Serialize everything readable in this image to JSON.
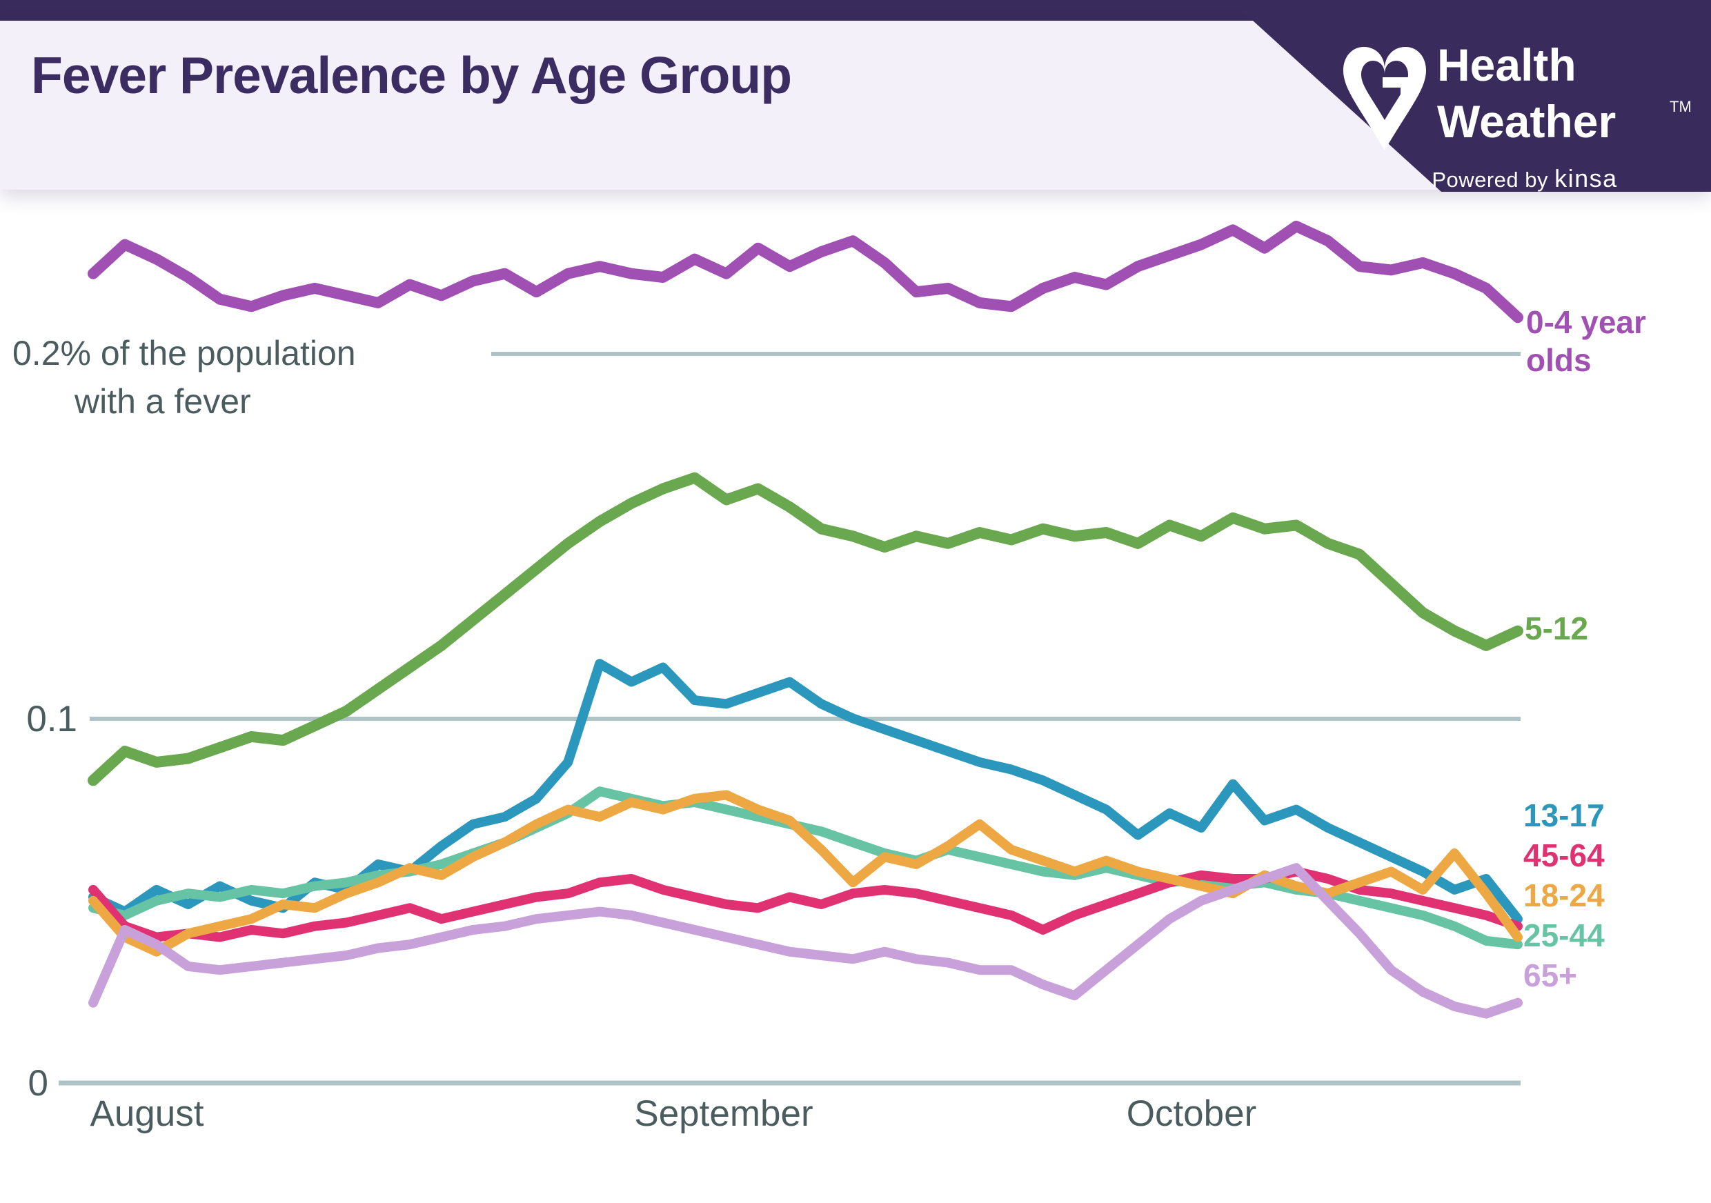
{
  "header": {
    "title": "Fever Prevalence by Age Group",
    "top_bar_color": "#3a2b5d",
    "band_color": "#f3f0fa",
    "title_color": "#3b2c62"
  },
  "brand": {
    "name_line1": "Health",
    "name_line2": "Weather",
    "trademark": "TM",
    "powered_by_prefix": "Powered by ",
    "powered_by_brand": "kinsa",
    "banner_color": "#3a2b5d",
    "logo_icon": "heart-g-logo"
  },
  "axis": {
    "y_annotation_line1": "0.2% of the population",
    "y_annotation_line2": "with a fever",
    "y_tick_mid": "0.1",
    "y_tick_bottom": "0",
    "x_tick_aug": "August",
    "x_tick_sep": "September",
    "x_tick_oct": "October",
    "text_color": "#4b5c5e",
    "gridline_color": "#adc3c6"
  },
  "legend": {
    "purple_line1": "0-4 year",
    "purple_line2": "olds",
    "green": "5-12",
    "blue": "13-17",
    "pink": "45-64",
    "orange": "18-24",
    "teal": "25-44",
    "lavender": "65+"
  },
  "chart_data": {
    "type": "line",
    "title": "Fever Prevalence by Age Group",
    "xlabel": "",
    "ylabel": "% of the population with a fever",
    "x_categories": [
      "August",
      "September",
      "October"
    ],
    "ylim": [
      0,
      0.25
    ],
    "gridline_values": [
      0,
      0.1,
      0.2
    ],
    "legend_position": "right",
    "grid": "horizontal-only",
    "pixel_map": {
      "x_left": 135,
      "x_right": 2200,
      "y_zero": 1570,
      "y_per_unit": 5285
    },
    "gridline_segments": [
      {
        "x1": 712,
        "x2": 2204,
        "y": 513,
        "w": 6
      },
      {
        "x1": 130,
        "x2": 2204,
        "y": 1042,
        "w": 6
      },
      {
        "x1": 85,
        "x2": 2204,
        "y": 1570,
        "w": 7
      }
    ],
    "series": [
      {
        "id": "5-12",
        "name": "5-12",
        "color": "#6aa84f",
        "stroke_width": 16,
        "values": [
          0.083,
          0.091,
          0.088,
          0.089,
          0.092,
          0.095,
          0.094,
          0.098,
          0.102,
          0.108,
          0.114,
          0.12,
          0.127,
          0.134,
          0.141,
          0.148,
          0.154,
          0.159,
          0.163,
          0.166,
          0.16,
          0.163,
          0.158,
          0.152,
          0.15,
          0.147,
          0.15,
          0.148,
          0.151,
          0.149,
          0.152,
          0.15,
          0.151,
          0.148,
          0.153,
          0.15,
          0.155,
          0.152,
          0.153,
          0.148,
          0.145,
          0.137,
          0.129,
          0.124,
          0.12,
          0.124
        ]
      },
      {
        "id": "0-4",
        "name": "0-4 year olds",
        "color": "#a050b2",
        "stroke_width": 16,
        "values": [
          0.222,
          0.23,
          0.226,
          0.221,
          0.215,
          0.213,
          0.216,
          0.218,
          0.216,
          0.214,
          0.219,
          0.216,
          0.22,
          0.222,
          0.217,
          0.222,
          0.224,
          0.222,
          0.221,
          0.226,
          0.222,
          0.229,
          0.224,
          0.228,
          0.231,
          0.225,
          0.217,
          0.218,
          0.214,
          0.213,
          0.218,
          0.221,
          0.219,
          0.224,
          0.227,
          0.23,
          0.234,
          0.229,
          0.235,
          0.231,
          0.224,
          0.223,
          0.225,
          0.222,
          0.218,
          0.21
        ]
      },
      {
        "id": "13-17",
        "name": "13-17",
        "color": "#2b97bd",
        "stroke_width": 14,
        "values": [
          0.051,
          0.047,
          0.053,
          0.049,
          0.054,
          0.05,
          0.048,
          0.055,
          0.053,
          0.06,
          0.058,
          0.065,
          0.071,
          0.073,
          0.078,
          0.088,
          0.115,
          0.11,
          0.114,
          0.105,
          0.104,
          0.107,
          0.11,
          0.104,
          0.1,
          0.097,
          0.094,
          0.091,
          0.088,
          0.086,
          0.083,
          0.079,
          0.075,
          0.068,
          0.074,
          0.07,
          0.082,
          0.072,
          0.075,
          0.07,
          0.066,
          0.062,
          0.058,
          0.053,
          0.056,
          0.045
        ]
      },
      {
        "id": "25-44",
        "name": "25-44",
        "color": "#66c3a4",
        "stroke_width": 14,
        "values": [
          0.048,
          0.046,
          0.05,
          0.052,
          0.051,
          0.053,
          0.052,
          0.054,
          0.055,
          0.057,
          0.058,
          0.06,
          0.063,
          0.066,
          0.07,
          0.074,
          0.08,
          0.078,
          0.076,
          0.077,
          0.075,
          0.073,
          0.071,
          0.069,
          0.066,
          0.063,
          0.061,
          0.064,
          0.062,
          0.06,
          0.058,
          0.057,
          0.059,
          0.057,
          0.055,
          0.056,
          0.054,
          0.055,
          0.053,
          0.052,
          0.05,
          0.048,
          0.046,
          0.043,
          0.039,
          0.038
        ]
      },
      {
        "id": "45-64",
        "name": "45-64",
        "color": "#e03273",
        "stroke_width": 14,
        "values": [
          0.053,
          0.043,
          0.04,
          0.041,
          0.04,
          0.042,
          0.041,
          0.043,
          0.044,
          0.046,
          0.048,
          0.045,
          0.047,
          0.049,
          0.051,
          0.052,
          0.055,
          0.056,
          0.053,
          0.051,
          0.049,
          0.048,
          0.051,
          0.049,
          0.052,
          0.053,
          0.052,
          0.05,
          0.048,
          0.046,
          0.042,
          0.046,
          0.049,
          0.052,
          0.055,
          0.057,
          0.056,
          0.056,
          0.058,
          0.056,
          0.053,
          0.052,
          0.05,
          0.048,
          0.046,
          0.043
        ]
      },
      {
        "id": "18-24",
        "name": "18-24",
        "color": "#eda843",
        "stroke_width": 14,
        "values": [
          0.05,
          0.04,
          0.036,
          0.041,
          0.043,
          0.045,
          0.049,
          0.048,
          0.052,
          0.055,
          0.059,
          0.057,
          0.062,
          0.066,
          0.071,
          0.075,
          0.073,
          0.077,
          0.075,
          0.078,
          0.079,
          0.075,
          0.072,
          0.064,
          0.055,
          0.062,
          0.06,
          0.065,
          0.071,
          0.064,
          0.061,
          0.058,
          0.061,
          0.058,
          0.056,
          0.054,
          0.052,
          0.057,
          0.054,
          0.052,
          0.055,
          0.058,
          0.053,
          0.063,
          0.052,
          0.04
        ]
      },
      {
        "id": "65plus",
        "name": "65+",
        "color": "#c8a1db",
        "stroke_width": 14,
        "values": [
          0.022,
          0.042,
          0.038,
          0.032,
          0.031,
          0.032,
          0.033,
          0.034,
          0.035,
          0.037,
          0.038,
          0.04,
          0.042,
          0.043,
          0.045,
          0.046,
          0.047,
          0.046,
          0.044,
          0.042,
          0.04,
          0.038,
          0.036,
          0.035,
          0.034,
          0.036,
          0.034,
          0.033,
          0.031,
          0.031,
          0.027,
          0.024,
          0.031,
          0.038,
          0.045,
          0.05,
          0.053,
          0.056,
          0.059,
          0.05,
          0.041,
          0.031,
          0.025,
          0.021,
          0.019,
          0.022
        ]
      }
    ]
  }
}
